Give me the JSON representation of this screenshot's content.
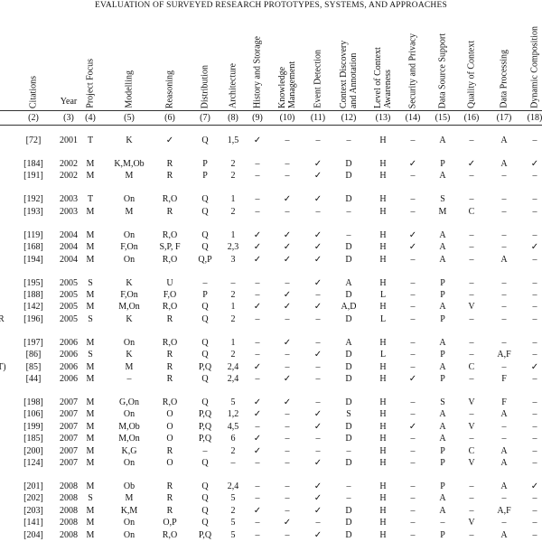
{
  "table": {
    "title": "EVALUATION OF SURVEYED RESEARCH PROTOTYPES, SYSTEMS, AND APPROACHES",
    "headers": [
      "Citations",
      "Year",
      "Project Focus",
      "Modelling",
      "Reasoning",
      "Distribution",
      "Architecture",
      "History and Storage",
      "Knowledge Management",
      "Event Detection",
      "Context Discovery and Annotation",
      "Level of Context Awareness",
      "Security and Privacy",
      "Data Source Support",
      "Quality of Context",
      "Data Processing",
      "Dynamic Composition"
    ],
    "column_numbers": [
      "(2)",
      "(3)",
      "(4)",
      "(5)",
      "(6)",
      "(7)",
      "(8)",
      "(9)",
      "(10)",
      "(11)",
      "(12)",
      "(13)",
      "(14)",
      "(15)",
      "(16)",
      "(17)",
      "(18)"
    ],
    "groups": [
      [
        {
          "cells": [
            "[72]",
            "2001",
            "T",
            "K",
            "✓",
            "Q",
            "1,5",
            "✓",
            "–",
            "–",
            "–",
            "H",
            "–",
            "A",
            "–",
            "A",
            "–"
          ]
        }
      ],
      [
        {
          "cells": [
            "[184]",
            "2002",
            "M",
            "K,M,Ob",
            "R",
            "P",
            "2",
            "–",
            "–",
            "✓",
            "D",
            "H",
            "✓",
            "P",
            "✓",
            "A",
            "✓"
          ]
        },
        {
          "cells": [
            "[191]",
            "2002",
            "M",
            "M",
            "R",
            "P",
            "2",
            "–",
            "–",
            "✓",
            "D",
            "H",
            "–",
            "A",
            "–",
            "–",
            "–"
          ]
        }
      ],
      [
        {
          "cells": [
            "[192]",
            "2003",
            "T",
            "On",
            "R,O",
            "Q",
            "1",
            "–",
            "✓",
            "✓",
            "D",
            "H",
            "–",
            "S",
            "–",
            "–",
            "–"
          ]
        },
        {
          "cells": [
            "[193]",
            "2003",
            "M",
            "M",
            "R",
            "Q",
            "2",
            "–",
            "–",
            "–",
            "–",
            "H",
            "–",
            "M",
            "C",
            "–",
            "–"
          ]
        }
      ],
      [
        {
          "cells": [
            "[119]",
            "2004",
            "M",
            "On",
            "R,O",
            "Q",
            "1",
            "✓",
            "✓",
            "✓",
            "–",
            "H",
            "✓",
            "A",
            "–",
            "–",
            "–"
          ]
        },
        {
          "cells": [
            "[168]",
            "2004",
            "M",
            "F,On",
            "S,P, F",
            "Q",
            "2,3",
            "✓",
            "✓",
            "✓",
            "D",
            "H",
            "✓",
            "A",
            "–",
            "–",
            "✓"
          ]
        },
        {
          "cells": [
            "[194]",
            "2004",
            "M",
            "On",
            "R,O",
            "Q,P",
            "3",
            "✓",
            "✓",
            "✓",
            "D",
            "H",
            "–",
            "A",
            "–",
            "A",
            "–"
          ]
        }
      ],
      [
        {
          "cells": [
            "[195]",
            "2005",
            "S",
            "K",
            "U",
            "–",
            "–",
            "–",
            "–",
            "✓",
            "A",
            "H",
            "–",
            "P",
            "–",
            "–",
            "–"
          ]
        },
        {
          "cells": [
            "[188]",
            "2005",
            "M",
            "F,On",
            "F,O",
            "P",
            "2",
            "–",
            "✓",
            "–",
            "D",
            "L",
            "–",
            "P",
            "–",
            "–",
            "–"
          ]
        },
        {
          "cells": [
            "[142]",
            "2005",
            "M",
            "M,On",
            "R,O",
            "Q",
            "1",
            "✓",
            "✓",
            "✓",
            "A,D",
            "H",
            "–",
            "A",
            "V",
            "–",
            "–"
          ]
        },
        {
          "edge": "R",
          "cells": [
            "[196]",
            "2005",
            "S",
            "K",
            "R",
            "Q",
            "2",
            "–",
            "–",
            "–",
            "D",
            "L",
            "–",
            "P",
            "–",
            "–",
            "–"
          ]
        }
      ],
      [
        {
          "cells": [
            "[197]",
            "2006",
            "M",
            "On",
            "R,O",
            "Q",
            "1",
            "–",
            "✓",
            "–",
            "A",
            "H",
            "–",
            "A",
            "–",
            "–",
            "–"
          ]
        },
        {
          "cells": [
            "[86]",
            "2006",
            "S",
            "K",
            "R",
            "Q",
            "2",
            "–",
            "–",
            "✓",
            "D",
            "L",
            "–",
            "P",
            "–",
            "A,F",
            "–"
          ]
        },
        {
          "edge": "T)",
          "cells": [
            "[85]",
            "2006",
            "M",
            "M",
            "R",
            "P,Q",
            "2,4",
            "✓",
            "–",
            "–",
            "D",
            "H",
            "–",
            "A",
            "C",
            "–",
            "✓"
          ]
        },
        {
          "cells": [
            "[44]",
            "2006",
            "M",
            "–",
            "R",
            "Q",
            "2,4",
            "–",
            "✓",
            "–",
            "D",
            "H",
            "✓",
            "P",
            "–",
            "F",
            "–"
          ]
        }
      ],
      [
        {
          "cells": [
            "[198]",
            "2007",
            "M",
            "G,On",
            "R,O",
            "Q",
            "5",
            "✓",
            "✓",
            "–",
            "D",
            "H",
            "–",
            "S",
            "V",
            "F",
            "–"
          ]
        },
        {
          "cells": [
            "[106]",
            "2007",
            "M",
            "On",
            "O",
            "P,Q",
            "1,2",
            "✓",
            "–",
            "✓",
            "S",
            "H",
            "–",
            "A",
            "–",
            "A",
            "–"
          ]
        },
        {
          "cells": [
            "[199]",
            "2007",
            "M",
            "M,Ob",
            "O",
            "P,Q",
            "4,5",
            "–",
            "–",
            "✓",
            "D",
            "H",
            "✓",
            "A",
            "V",
            "–",
            "–"
          ]
        },
        {
          "cells": [
            "[185]",
            "2007",
            "M",
            "M,On",
            "O",
            "P,Q",
            "6",
            "✓",
            "–",
            "–",
            "D",
            "H",
            "–",
            "A",
            "–",
            "–",
            "–"
          ]
        },
        {
          "cells": [
            "[200]",
            "2007",
            "M",
            "K,G",
            "R",
            "–",
            "2",
            "✓",
            "–",
            "–",
            "–",
            "H",
            "–",
            "P",
            "C",
            "A",
            "–"
          ]
        },
        {
          "cells": [
            "[124]",
            "2007",
            "M",
            "On",
            "O",
            "Q",
            "–",
            "–",
            "–",
            "✓",
            "D",
            "H",
            "–",
            "P",
            "V",
            "A",
            "–"
          ]
        }
      ],
      [
        {
          "cells": [
            "[201]",
            "2008",
            "M",
            "Ob",
            "R",
            "Q",
            "2,4",
            "–",
            "–",
            "✓",
            "–",
            "H",
            "–",
            "P",
            "–",
            "A",
            "✓"
          ]
        },
        {
          "cells": [
            "[202]",
            "2008",
            "S",
            "M",
            "R",
            "Q",
            "5",
            "–",
            "–",
            "✓",
            "–",
            "H",
            "–",
            "A",
            "–",
            "–",
            "–"
          ]
        },
        {
          "cells": [
            "[203]",
            "2008",
            "M",
            "K,M",
            "R",
            "Q",
            "2",
            "✓",
            "–",
            "✓",
            "D",
            "H",
            "–",
            "A",
            "–",
            "A,F",
            "–"
          ]
        },
        {
          "cells": [
            "[141]",
            "2008",
            "M",
            "On",
            "O,P",
            "Q",
            "5",
            "–",
            "✓",
            "–",
            "D",
            "H",
            "–",
            "–",
            "V",
            "–",
            "–"
          ]
        },
        {
          "cells": [
            "[204]",
            "2008",
            "M",
            "On",
            "R,O",
            "P,Q",
            "5",
            "–",
            "–",
            "✓",
            "D",
            "H",
            "–",
            "P",
            "–",
            "A",
            "–"
          ]
        }
      ]
    ]
  }
}
